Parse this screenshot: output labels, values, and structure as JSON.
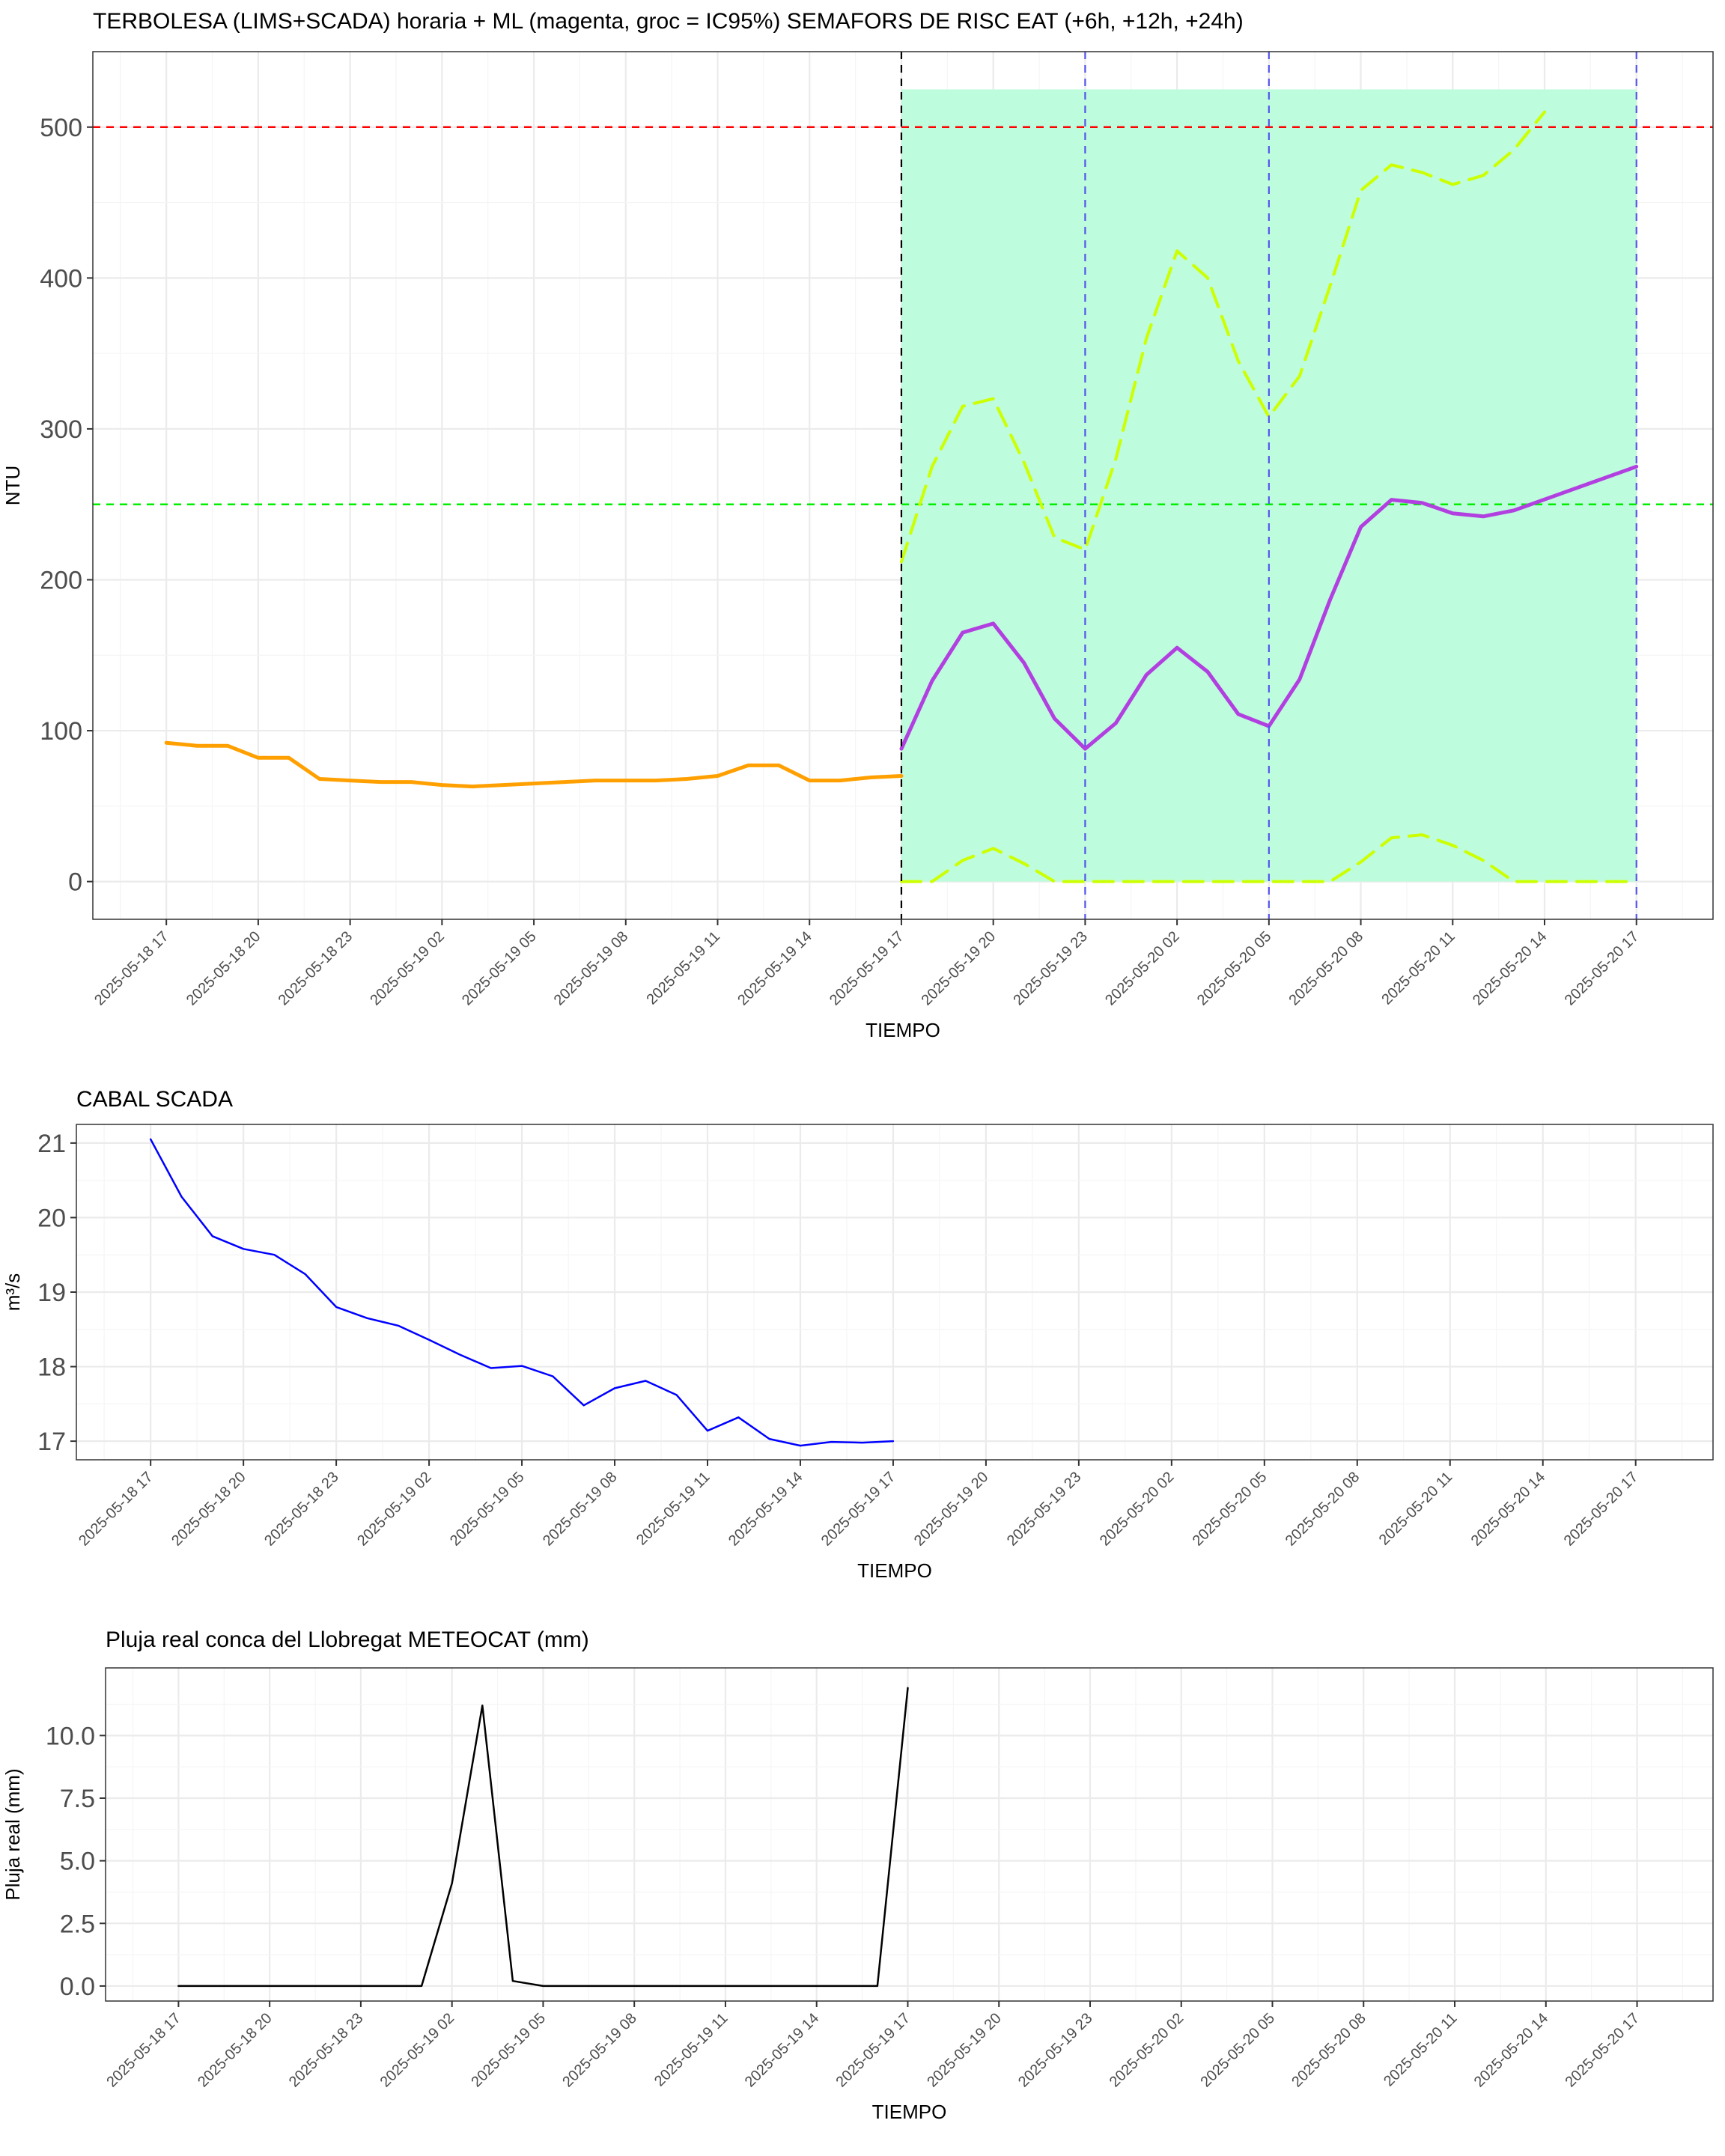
{
  "x_ticks": [
    "2025-05-18 17",
    "2025-05-18 20",
    "2025-05-18 23",
    "2025-05-19 02",
    "2025-05-19 05",
    "2025-05-19 08",
    "2025-05-19 11",
    "2025-05-19 14",
    "2025-05-19 17",
    "2025-05-19 20",
    "2025-05-19 23",
    "2025-05-20 02",
    "2025-05-20 05",
    "2025-05-20 08",
    "2025-05-20 11",
    "2025-05-20 14",
    "2025-05-20 17"
  ],
  "chart_data": [
    {
      "id": "turbidity",
      "type": "line",
      "title": "TERBOLESA (LIMS+SCADA) horaria + ML (magenta, groc = IC95%) SEMAFORS DE RISC EAT (+6h, +12h, +24h)",
      "xlabel": "TIEMPO",
      "ylabel": "NTU",
      "x_unit": "hours since 2025-05-18 17:00",
      "xlim": [
        -2.4,
        50.5
      ],
      "ylim": [
        -25,
        550
      ],
      "yticks": [
        0,
        100,
        200,
        300,
        400,
        500
      ],
      "ytick_labels": [
        "0",
        "100",
        "200",
        "300",
        "400",
        "500"
      ],
      "grid": true,
      "thresholds": [
        {
          "y": 500,
          "color": "#ff0000",
          "style": "dashed"
        },
        {
          "y": 250,
          "color": "#00ee00",
          "style": "dashed"
        }
      ],
      "vlines": [
        {
          "x": 24,
          "color": "#000000",
          "style": "dashed"
        },
        {
          "x": 30,
          "color": "#5555ee",
          "style": "dashed"
        },
        {
          "x": 36,
          "color": "#5555ee",
          "style": "dashed"
        },
        {
          "x": 48,
          "color": "#5555ee",
          "style": "dashed"
        }
      ],
      "shaded_region": {
        "x": [
          24,
          48
        ],
        "y": [
          0,
          525
        ],
        "color": "#bdfcdc"
      },
      "series": [
        {
          "role": "observed",
          "color": "#ffa000",
          "style": "solid",
          "width": 5,
          "x": [
            0,
            1,
            2,
            3,
            4,
            5,
            6,
            7,
            8,
            9,
            10,
            11,
            12,
            13,
            14,
            15,
            16,
            17,
            18,
            19,
            20,
            21,
            22,
            23,
            24
          ],
          "y": [
            92,
            90,
            90,
            82,
            82,
            68,
            67,
            66,
            66,
            64,
            63,
            64,
            65,
            66,
            67,
            67,
            67,
            68,
            70,
            77,
            77,
            67,
            67,
            69,
            70
          ]
        },
        {
          "role": "prediction",
          "color": "#b23fe0",
          "style": "solid",
          "width": 5,
          "x": [
            24,
            25,
            26,
            27,
            28,
            29,
            30,
            31,
            32,
            33,
            34,
            35,
            36,
            37,
            38,
            39,
            40,
            41,
            42,
            43,
            44,
            48
          ],
          "y": [
            88,
            133,
            165,
            171,
            145,
            108,
            88,
            105,
            137,
            155,
            139,
            111,
            103,
            134,
            187,
            235,
            253,
            251,
            244,
            242,
            246,
            275
          ]
        },
        {
          "role": "upper-95",
          "color": "#ccff00",
          "style": "dashed",
          "width": 4,
          "x": [
            24,
            25,
            26,
            27,
            28,
            29,
            30,
            31,
            32,
            33,
            34,
            35,
            36,
            37,
            38,
            39,
            40,
            41,
            42,
            43,
            44,
            45
          ],
          "y": [
            212,
            275,
            315,
            320,
            278,
            228,
            220,
            280,
            360,
            418,
            400,
            345,
            308,
            335,
            395,
            458,
            475,
            470,
            462,
            468,
            485,
            510
          ]
        },
        {
          "role": "lower-95",
          "color": "#ccff00",
          "style": "dashed",
          "width": 4,
          "x": [
            24,
            25,
            26,
            27,
            28,
            29,
            30,
            31,
            32,
            33,
            34,
            35,
            36,
            37,
            38,
            39,
            40,
            41,
            42,
            43,
            44,
            48
          ],
          "y": [
            0,
            0,
            14,
            22,
            12,
            0,
            0,
            0,
            0,
            0,
            0,
            0,
            0,
            0,
            0,
            13,
            29,
            31,
            24,
            14,
            0,
            0
          ]
        }
      ]
    },
    {
      "id": "flow",
      "type": "line",
      "title": "CABAL SCADA",
      "xlabel": "TIEMPO",
      "ylabel": "m³/s",
      "x_unit": "hours since 2025-05-18 17:00",
      "xlim": [
        -2.4,
        50.5
      ],
      "ylim": [
        16.75,
        21.25
      ],
      "yticks": [
        17,
        18,
        19,
        20,
        21
      ],
      "ytick_labels": [
        "17",
        "18",
        "19",
        "20",
        "21"
      ],
      "grid": true,
      "series": [
        {
          "color": "#0000ff",
          "style": "solid",
          "width": 2.5,
          "x": [
            0,
            1,
            2,
            3,
            4,
            5,
            6,
            7,
            8,
            9,
            10,
            11,
            12,
            13,
            14,
            15,
            16,
            17,
            18,
            19,
            20,
            21,
            22,
            23,
            24
          ],
          "y": [
            21.05,
            20.28,
            19.75,
            19.58,
            19.5,
            19.24,
            18.8,
            18.65,
            18.55,
            18.36,
            18.16,
            17.98,
            18.01,
            17.87,
            17.48,
            17.71,
            17.81,
            17.62,
            17.14,
            17.32,
            17.03,
            16.94,
            16.99,
            16.98,
            17.0
          ]
        }
      ]
    },
    {
      "id": "rain",
      "type": "line",
      "title": "Pluja real conca del Llobregat METEOCAT (mm)",
      "xlabel": "TIEMPO",
      "ylabel": "Pluja real (mm)",
      "x_unit": "hours since 2025-05-18 17:00",
      "xlim": [
        -2.4,
        50.5
      ],
      "ylim": [
        -0.6,
        12.7
      ],
      "yticks": [
        0,
        2.5,
        5,
        7.5,
        10
      ],
      "ytick_labels": [
        "0.0",
        "2.5",
        "5.0",
        "7.5",
        "10.0"
      ],
      "grid": true,
      "series": [
        {
          "color": "#000000",
          "style": "solid",
          "width": 2.5,
          "x": [
            0,
            1,
            2,
            3,
            4,
            5,
            6,
            7,
            8,
            9,
            10,
            11,
            12,
            13,
            14,
            15,
            16,
            17,
            18,
            19,
            20,
            21,
            22,
            23,
            24
          ],
          "y": [
            0,
            0,
            0,
            0,
            0,
            0,
            0,
            0,
            0,
            4.1,
            11.2,
            0.2,
            0,
            0,
            0,
            0,
            0,
            0,
            0,
            0,
            0,
            0,
            0,
            0,
            11.9
          ]
        }
      ]
    }
  ]
}
